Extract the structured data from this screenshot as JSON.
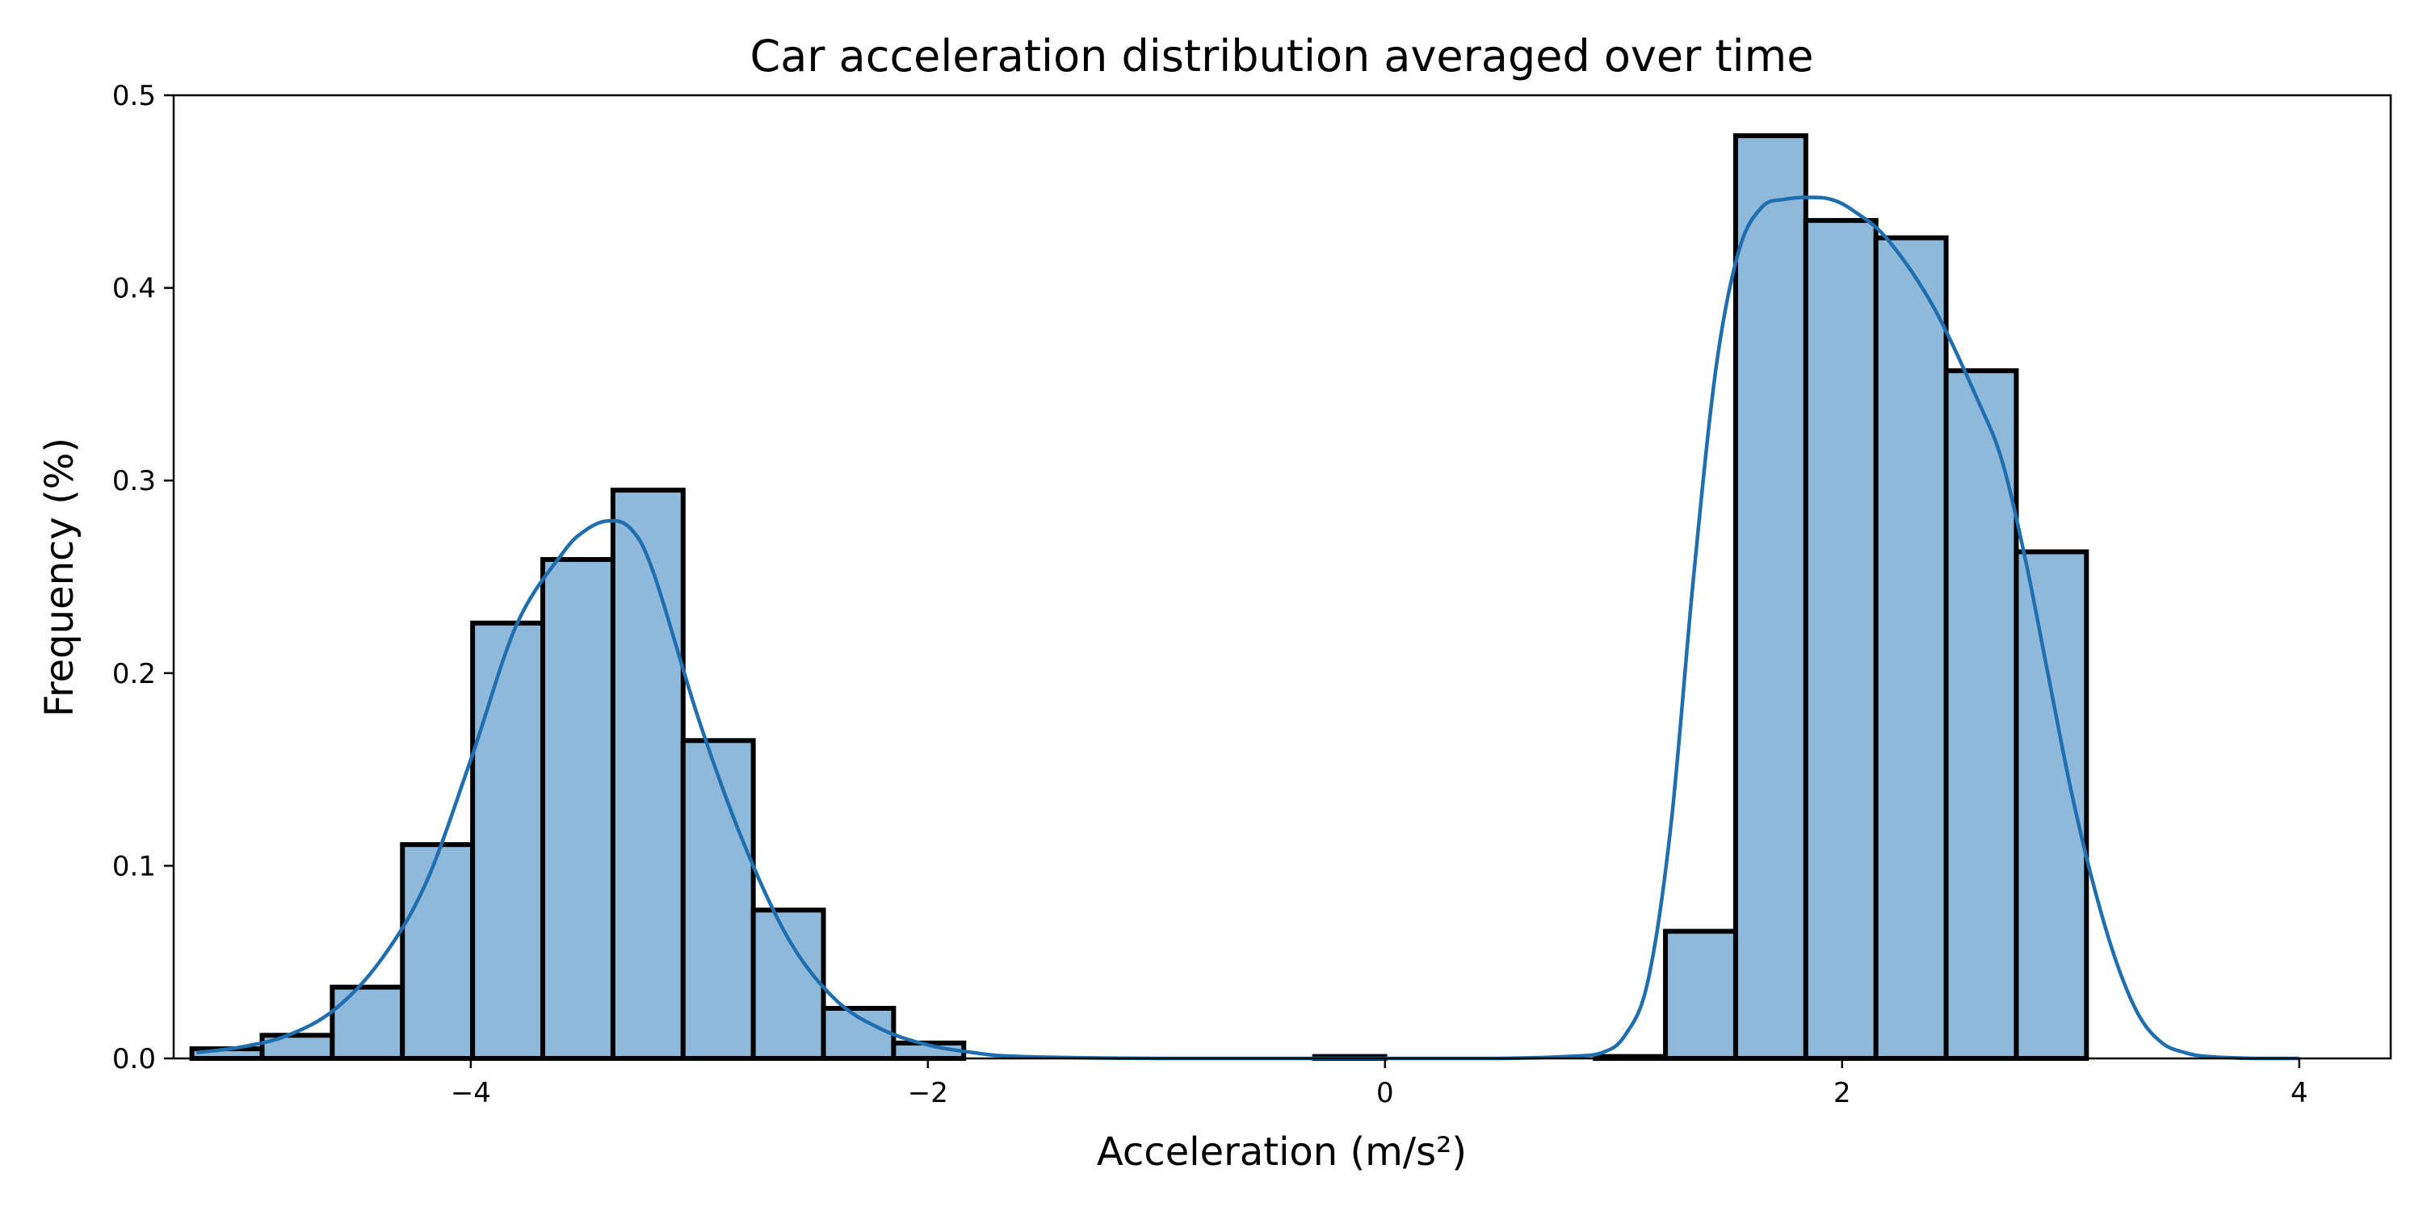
{
  "chart_data": {
    "type": "bar",
    "title": "Car acceleration distribution averaged over time",
    "xlabel": "Acceleration (m/s²)",
    "ylabel": "Frequency (%)",
    "xlim": [
      -5.3,
      4.4
    ],
    "ylim": [
      0,
      0.5
    ],
    "xticks": [
      -4,
      -2,
      0,
      2,
      4
    ],
    "xtick_labels": [
      "−4",
      "−2",
      "0",
      "2",
      "4"
    ],
    "yticks": [
      0.0,
      0.1,
      0.2,
      0.3,
      0.4,
      0.5
    ],
    "ytick_labels": [
      "0.0",
      "0.1",
      "0.2",
      "0.3",
      "0.4",
      "0.5"
    ],
    "grid": false,
    "bar_fill": "#8fb9da",
    "bar_edge": "#000000",
    "kde_color": "#1f6fb0",
    "bin_edges": [
      -5.22,
      -4.913,
      -4.606,
      -4.299,
      -3.992,
      -3.685,
      -3.378,
      -3.071,
      -2.764,
      -2.457,
      -2.15,
      -1.843,
      -1.536,
      -1.229,
      -0.922,
      -0.615,
      -0.308,
      -0.001,
      0.306,
      0.613,
      0.92,
      1.227,
      1.534,
      1.841,
      2.148,
      2.455,
      2.762,
      3.069
    ],
    "values": [
      0.005,
      0.012,
      0.037,
      0.111,
      0.226,
      0.259,
      0.295,
      0.165,
      0.077,
      0.026,
      0.008,
      0.0,
      0.0,
      0.0,
      0.0,
      0.0,
      0.001,
      0.0,
      0.0,
      0.0,
      0.001,
      0.066,
      0.479,
      0.435,
      0.426,
      0.357,
      0.263
    ],
    "kde": {
      "x": [
        -5.2,
        -5.0,
        -4.8,
        -4.6,
        -4.4,
        -4.2,
        -4.0,
        -3.8,
        -3.6,
        -3.5,
        -3.4,
        -3.3,
        -3.2,
        -3.0,
        -2.8,
        -2.6,
        -2.4,
        -2.2,
        -2.0,
        -1.8,
        -1.6,
        -1.0,
        0.0,
        0.5,
        0.8,
        0.95,
        1.05,
        1.15,
        1.25,
        1.35,
        1.45,
        1.55,
        1.65,
        1.75,
        1.85,
        1.95,
        2.05,
        2.2,
        2.4,
        2.6,
        2.7,
        2.8,
        2.9,
        3.0,
        3.1,
        3.2,
        3.3,
        3.4,
        3.5,
        3.6,
        3.8,
        4.0
      ],
      "y": [
        0.003,
        0.006,
        0.012,
        0.025,
        0.05,
        0.09,
        0.155,
        0.225,
        0.262,
        0.274,
        0.279,
        0.275,
        0.252,
        0.175,
        0.11,
        0.06,
        0.03,
        0.015,
        0.007,
        0.003,
        0.001,
        0.0,
        0.0,
        0.0,
        0.001,
        0.003,
        0.012,
        0.04,
        0.12,
        0.25,
        0.36,
        0.42,
        0.442,
        0.446,
        0.447,
        0.446,
        0.44,
        0.425,
        0.39,
        0.34,
        0.31,
        0.26,
        0.2,
        0.14,
        0.09,
        0.05,
        0.022,
        0.008,
        0.003,
        0.001,
        0.0,
        0.0
      ]
    }
  }
}
